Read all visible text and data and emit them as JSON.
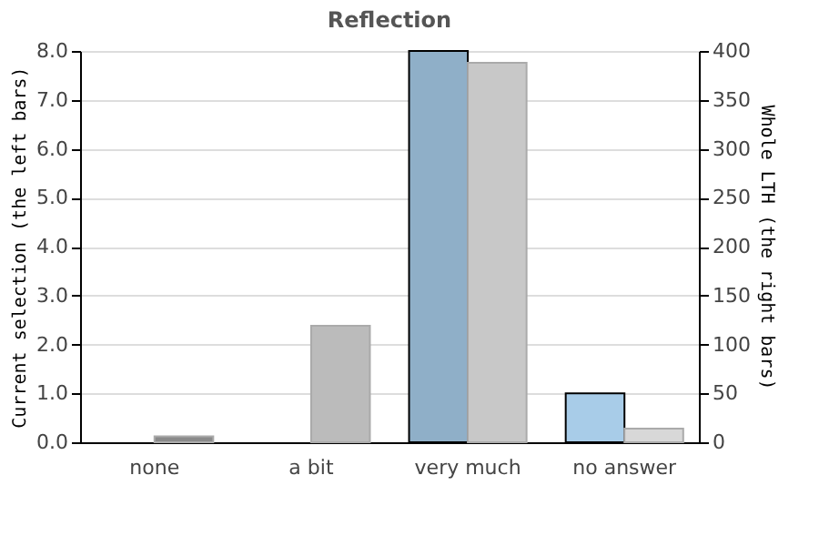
{
  "chart_data": {
    "type": "bar",
    "title": "Reflection",
    "categories": [
      "none",
      "a bit",
      "very much",
      "no answer"
    ],
    "ylabel": "Current selection (the left bars)",
    "y2label": "Whole LTH (the right bars)",
    "series": [
      {
        "colors": [
          "#8fafc8",
          "#8fafc8",
          "#8fafc8",
          "#a8cce8"
        ],
        "values": [
          0,
          0,
          8.0,
          1.0
        ]
      },
      {
        "axis": "y2",
        "colors": [
          "#8a8a8a",
          "#bbbbbb",
          "#c8c8c8",
          "#d8d8d8"
        ],
        "values": [
          6,
          119,
          388,
          14
        ]
      }
    ],
    "ylim": [
      0,
      8
    ],
    "yticks": [
      {
        "value": 0,
        "label": "0.0"
      },
      {
        "value": 1,
        "label": "1.0"
      },
      {
        "value": 2,
        "label": "2.0"
      },
      {
        "value": 3,
        "label": "3.0"
      },
      {
        "value": 4,
        "label": "4.0"
      },
      {
        "value": 5,
        "label": "5.0"
      },
      {
        "value": 6,
        "label": "6.0"
      },
      {
        "value": 7,
        "label": "7.0"
      },
      {
        "value": 8,
        "label": "8.0"
      }
    ],
    "y2lim": [
      0,
      400
    ],
    "y2ticks": [
      0,
      50,
      100,
      150,
      200,
      250,
      300,
      350,
      400
    ],
    "grid": "y"
  }
}
